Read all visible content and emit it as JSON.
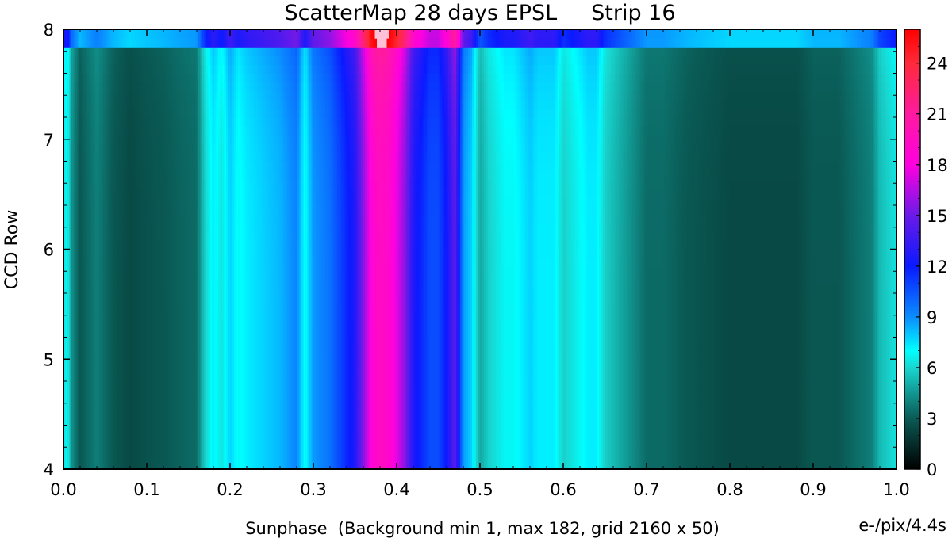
{
  "chart_data": {
    "type": "heatmap",
    "title": "ScatterMap 28 days EPSL     Strip 16",
    "xlabel": "Sunphase  (Background min 1, max 182, grid 2160 x 50)",
    "ylabel": "CCD Row",
    "colorbar_label": "e-/pix/4.4s",
    "xlim": [
      0.0,
      1.0
    ],
    "ylim": [
      4,
      8
    ],
    "clim": [
      0,
      26
    ],
    "x_ticks": [
      0.0,
      0.1,
      0.2,
      0.3,
      0.4,
      0.5,
      0.6,
      0.7,
      0.8,
      0.9,
      1.0
    ],
    "x_tick_labels": [
      "0.0",
      "0.1",
      "0.2",
      "0.3",
      "0.4",
      "0.5",
      "0.6",
      "0.7",
      "0.8",
      "0.9",
      "1.0"
    ],
    "y_ticks": [
      4,
      5,
      6,
      7,
      8
    ],
    "y_tick_labels": [
      "4",
      "5",
      "6",
      "7",
      "8"
    ],
    "colorbar_ticks": [
      0,
      3,
      6,
      9,
      12,
      15,
      18,
      21,
      24
    ],
    "colorbar_tick_labels": [
      "0",
      "3",
      "6",
      "9",
      "12",
      "15",
      "18",
      "21",
      "24"
    ],
    "colormap": [
      {
        "value": 0,
        "color": "#000000"
      },
      {
        "value": 3,
        "color": "#0a5a55"
      },
      {
        "value": 6,
        "color": "#19d6d0"
      },
      {
        "value": 7,
        "color": "#00ffff"
      },
      {
        "value": 9,
        "color": "#0a8cff"
      },
      {
        "value": 12,
        "color": "#0a1aff"
      },
      {
        "value": 15,
        "color": "#6a1ae8"
      },
      {
        "value": 18,
        "color": "#ff00e0"
      },
      {
        "value": 21,
        "color": "#ff1aa0"
      },
      {
        "value": 24,
        "color": "#ff2a3a"
      },
      {
        "value": 26,
        "color": "#ff0000"
      }
    ],
    "saturation_color": "#ffc0d8",
    "profile_x": [
      0.0,
      0.005,
      0.01,
      0.02,
      0.03,
      0.04,
      0.06,
      0.08,
      0.1,
      0.12,
      0.14,
      0.16,
      0.17,
      0.18,
      0.19,
      0.2,
      0.21,
      0.22,
      0.24,
      0.26,
      0.28,
      0.29,
      0.3,
      0.31,
      0.32,
      0.33,
      0.34,
      0.35,
      0.36,
      0.37,
      0.38,
      0.39,
      0.4,
      0.41,
      0.42,
      0.43,
      0.44,
      0.45,
      0.46,
      0.47,
      0.48,
      0.49,
      0.5,
      0.51,
      0.52,
      0.53,
      0.54,
      0.55,
      0.56,
      0.57,
      0.58,
      0.59,
      0.6,
      0.61,
      0.62,
      0.63,
      0.64,
      0.65,
      0.66,
      0.67,
      0.68,
      0.7,
      0.72,
      0.75,
      0.8,
      0.85,
      0.88,
      0.9,
      0.93,
      0.95,
      0.97,
      0.98,
      0.99,
      1.0
    ],
    "profile_values": [
      6.5,
      7,
      4.5,
      3,
      3.5,
      4,
      3,
      2.5,
      2.8,
      3,
      3.3,
      3.5,
      6,
      7.5,
      6.5,
      8,
      7,
      7.5,
      8,
      8.5,
      9.5,
      7,
      9,
      9.5,
      10,
      11,
      12,
      13,
      16,
      19,
      20,
      19.5,
      18,
      16,
      13,
      12,
      11,
      11,
      12.5,
      15,
      9,
      8,
      5,
      6,
      6.5,
      7,
      7,
      7.5,
      8,
      7.5,
      7.5,
      7.5,
      6,
      6.5,
      7,
      7.5,
      7.5,
      6,
      5.5,
      5,
      4.5,
      3.5,
      3.5,
      3,
      2.5,
      2.5,
      2.5,
      3,
      3,
      3.5,
      4,
      5.5,
      6,
      6.5
    ],
    "grid": false,
    "colorbar_position": "right"
  }
}
